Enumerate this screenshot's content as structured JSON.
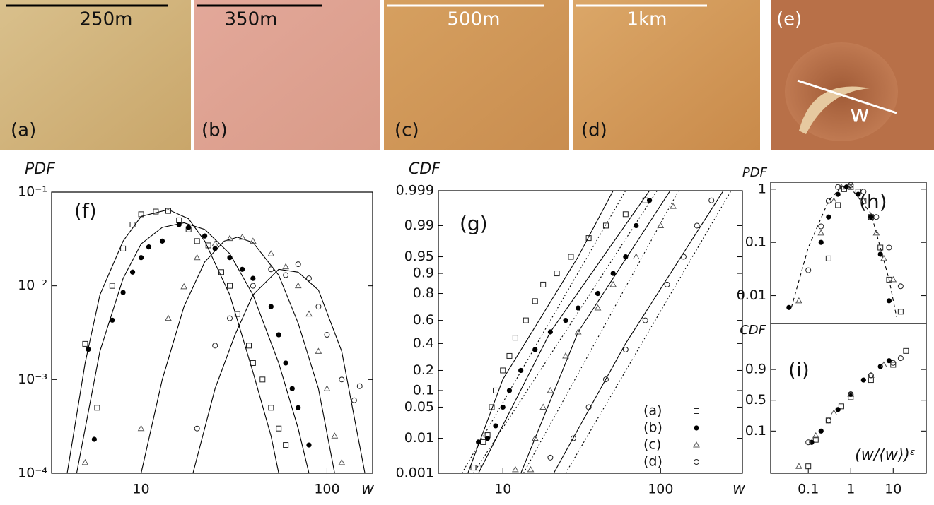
{
  "images": [
    {
      "label": "(a)",
      "scale": "250m"
    },
    {
      "label": "(b)",
      "scale": "350m"
    },
    {
      "label": "(c)",
      "scale": "500m"
    },
    {
      "label": "(d)",
      "scale": "1km"
    },
    {
      "label": "(e)",
      "annotation": "w"
    }
  ],
  "chart_data": [
    {
      "type": "scatter",
      "panel": "(f)",
      "y_label": "PDF",
      "x_label": "w",
      "x_scale": "log",
      "y_scale": "log",
      "xlim": [
        3.3,
        176
      ],
      "ylim": [
        0.0001,
        0.1
      ],
      "xticks": [
        10,
        100
      ],
      "yticks": [
        {
          "value": 0.0001,
          "label": "10⁻⁴"
        },
        {
          "value": 0.001,
          "label": "10⁻³"
        },
        {
          "value": 0.01,
          "label": "10⁻²"
        },
        {
          "value": 0.1,
          "label": "10⁻¹"
        }
      ],
      "series": [
        {
          "marker": "square",
          "color": "#222",
          "x": [
            5,
            5.8,
            7,
            8,
            9,
            10,
            12,
            14,
            16,
            18,
            20,
            23,
            27,
            30,
            33,
            38,
            40,
            45,
            50,
            55,
            60
          ],
          "values": [
            0.0024,
            0.0005,
            0.01,
            0.025,
            0.045,
            0.058,
            0.062,
            0.063,
            0.05,
            0.04,
            0.03,
            0.027,
            0.014,
            0.01,
            0.005,
            0.0023,
            0.0015,
            0.001,
            0.0005,
            0.0003,
            0.0002
          ]
        },
        {
          "marker": "dot",
          "color": "#000",
          "x": [
            5.2,
            5.6,
            7,
            8,
            9,
            10,
            11,
            13,
            16,
            18,
            22,
            25,
            30,
            35,
            40,
            50,
            55,
            60,
            65,
            70,
            80
          ],
          "values": [
            0.0021,
            0.00023,
            0.0043,
            0.0085,
            0.014,
            0.02,
            0.026,
            0.03,
            0.045,
            0.042,
            0.034,
            0.025,
            0.02,
            0.015,
            0.012,
            0.006,
            0.003,
            0.0015,
            0.0008,
            0.0005,
            0.0002
          ]
        },
        {
          "marker": "triangle",
          "color": "#555",
          "x": [
            5,
            10,
            14,
            17,
            20,
            25,
            30,
            35,
            40,
            50,
            60,
            70,
            80,
            90,
            100,
            110,
            120
          ],
          "values": [
            0.00013,
            0.0003,
            0.0045,
            0.0098,
            0.02,
            0.028,
            0.032,
            0.033,
            0.03,
            0.022,
            0.016,
            0.01,
            0.005,
            0.002,
            0.0008,
            0.00025,
            0.00013
          ]
        },
        {
          "marker": "circle",
          "color": "#222",
          "x": [
            20,
            25,
            30,
            40,
            50,
            60,
            70,
            80,
            90,
            100,
            120,
            140,
            150
          ],
          "values": [
            0.0003,
            0.0023,
            0.0045,
            0.01,
            0.015,
            0.013,
            0.017,
            0.012,
            0.006,
            0.003,
            0.001,
            0.0006,
            0.00085
          ]
        }
      ],
      "fits": [
        {
          "style": "solid",
          "x": [
            4,
            5,
            6,
            8,
            10,
            14,
            18,
            22,
            30,
            40,
            50,
            55
          ],
          "values": [
            0.0001,
            0.0015,
            0.008,
            0.03,
            0.055,
            0.065,
            0.052,
            0.03,
            0.008,
            0.0012,
            0.00025,
            0.0001
          ]
        },
        {
          "style": "solid",
          "x": [
            4.5,
            6,
            8,
            10,
            13,
            17,
            22,
            30,
            40,
            55,
            70,
            80
          ],
          "values": [
            0.0001,
            0.002,
            0.012,
            0.028,
            0.042,
            0.047,
            0.04,
            0.022,
            0.008,
            0.0015,
            0.0003,
            0.0001
          ]
        },
        {
          "style": "solid",
          "x": [
            10,
            13,
            17,
            22,
            28,
            33,
            40,
            55,
            70,
            90,
            110
          ],
          "values": [
            0.0001,
            0.001,
            0.006,
            0.018,
            0.03,
            0.033,
            0.029,
            0.013,
            0.004,
            0.0008,
            0.0001
          ]
        },
        {
          "style": "solid",
          "x": [
            19,
            25,
            32,
            40,
            55,
            70,
            90,
            120,
            160
          ],
          "values": [
            0.0001,
            0.0008,
            0.003,
            0.008,
            0.015,
            0.014,
            0.009,
            0.002,
            0.0001
          ]
        }
      ]
    },
    {
      "type": "scatter",
      "panel": "(g)",
      "y_label": "CDF",
      "x_label": "w",
      "x_scale": "log",
      "y_scale": "probit",
      "xlim": [
        3.9,
        330
      ],
      "ylim": [
        0.001,
        0.999
      ],
      "xticks": [
        10,
        100
      ],
      "yticks": [
        0.001,
        0.01,
        0.05,
        0.1,
        0.2,
        0.4,
        0.6,
        0.8,
        0.9,
        0.95,
        0.99,
        0.999
      ],
      "legend": "lower right",
      "series": [
        {
          "name": "(a)",
          "marker": "square",
          "color": "#222",
          "x": [
            6.5,
            7,
            7.5,
            8,
            8.5,
            9,
            10,
            11,
            12,
            14,
            16,
            18,
            22,
            27,
            35,
            45,
            60,
            80
          ],
          "values": [
            0.0015,
            0.0015,
            0.008,
            0.012,
            0.05,
            0.1,
            0.2,
            0.3,
            0.45,
            0.6,
            0.75,
            0.85,
            0.9,
            0.95,
            0.98,
            0.99,
            0.995,
            0.998
          ]
        },
        {
          "name": "(b)",
          "marker": "dot",
          "color": "#000",
          "x": [
            7,
            8,
            9,
            10,
            11,
            13,
            16,
            20,
            25,
            30,
            40,
            50,
            60,
            70,
            85
          ],
          "values": [
            0.008,
            0.01,
            0.02,
            0.05,
            0.1,
            0.2,
            0.35,
            0.5,
            0.6,
            0.7,
            0.8,
            0.9,
            0.95,
            0.99,
            0.998
          ]
        },
        {
          "name": "(c)",
          "marker": "triangle",
          "color": "#555",
          "x": [
            12,
            15,
            16,
            18,
            20,
            25,
            30,
            40,
            50,
            70,
            100,
            120
          ],
          "values": [
            0.0013,
            0.0013,
            0.01,
            0.05,
            0.1,
            0.3,
            0.5,
            0.7,
            0.85,
            0.95,
            0.99,
            0.997
          ]
        },
        {
          "name": "(d)",
          "marker": "circle",
          "color": "#222",
          "x": [
            20,
            28,
            35,
            45,
            60,
            80,
            110,
            140,
            170,
            210
          ],
          "values": [
            0.003,
            0.01,
            0.05,
            0.15,
            0.35,
            0.6,
            0.85,
            0.95,
            0.99,
            0.998
          ]
        }
      ],
      "fits": [
        {
          "style": "solid",
          "x": [
            6,
            10,
            30,
            50
          ],
          "values": [
            0.001,
            0.15,
            0.95,
            0.999
          ]
        },
        {
          "style": "dotted",
          "x": [
            5.5,
            60
          ],
          "values": [
            0.001,
            0.999
          ]
        },
        {
          "style": "solid",
          "x": [
            7,
            20,
            85
          ],
          "values": [
            0.001,
            0.5,
            0.999
          ]
        },
        {
          "style": "dotted",
          "x": [
            6.5,
            95
          ],
          "values": [
            0.001,
            0.999
          ]
        },
        {
          "style": "solid",
          "x": [
            13,
            30,
            115
          ],
          "values": [
            0.001,
            0.5,
            0.999
          ]
        },
        {
          "style": "dotted",
          "x": [
            13.5,
            130
          ],
          "values": [
            0.001,
            0.999
          ]
        },
        {
          "style": "solid",
          "x": [
            21,
            60,
            250
          ],
          "values": [
            0.001,
            0.4,
            0.999
          ]
        },
        {
          "style": "dotted",
          "x": [
            25,
            280
          ],
          "values": [
            0.001,
            0.999
          ]
        }
      ]
    },
    {
      "type": "scatter",
      "panel": "(h)",
      "y_label": "PDF",
      "x_scale": "log",
      "y_scale": "log",
      "xlim": [
        0.013,
        60
      ],
      "ylim": [
        0.003,
        1.35
      ],
      "yticks": [
        0.01,
        0.1,
        1
      ],
      "series": [
        {
          "marker": "square",
          "color": "#222",
          "x": [
            0.3,
            0.5,
            0.7,
            1,
            1.5,
            2,
            3,
            5,
            8,
            15
          ],
          "values": [
            0.05,
            0.5,
            1,
            1.1,
            0.9,
            0.6,
            0.3,
            0.08,
            0.02,
            0.005
          ]
        },
        {
          "marker": "dot",
          "color": "#000",
          "x": [
            0.035,
            0.2,
            0.3,
            0.5,
            0.8,
            1.5,
            3,
            5,
            8
          ],
          "values": [
            0.006,
            0.1,
            0.3,
            0.8,
            1.1,
            0.8,
            0.3,
            0.06,
            0.008
          ]
        },
        {
          "marker": "triangle",
          "color": "#555",
          "x": [
            0.06,
            0.2,
            0.4,
            0.6,
            1,
            2,
            4,
            6,
            10
          ],
          "values": [
            0.008,
            0.15,
            0.6,
            1.1,
            1.1,
            0.6,
            0.15,
            0.05,
            0.02
          ]
        },
        {
          "marker": "circle",
          "color": "#222",
          "x": [
            0.1,
            0.2,
            0.3,
            0.5,
            1,
            2,
            4,
            8,
            15
          ],
          "values": [
            0.03,
            0.2,
            0.6,
            1.1,
            1.2,
            0.9,
            0.3,
            0.08,
            0.015
          ]
        }
      ],
      "fits": [
        {
          "style": "dashed",
          "x": [
            0.04,
            0.1,
            0.3,
            0.6,
            1,
            3,
            8,
            12
          ],
          "values": [
            0.006,
            0.08,
            0.6,
            1.1,
            1.05,
            0.35,
            0.02,
            0.004
          ]
        }
      ]
    },
    {
      "type": "scatter",
      "panel": "(i)",
      "y_label": "CDF",
      "x_label": "(w/⟨w⟩)ᵋ",
      "x_scale": "log",
      "y_scale": "probit",
      "xlim": [
        0.013,
        60
      ],
      "ylim": [
        0.0012,
        0.9993
      ],
      "xticks": [
        0.1,
        1,
        10
      ],
      "yticks": [
        0.1,
        0.5,
        0.9
      ],
      "series": [
        {
          "marker": "square",
          "color": "#222",
          "x": [
            0.1,
            0.15,
            0.3,
            0.6,
            1,
            3,
            10,
            20
          ],
          "values": [
            0.003,
            0.05,
            0.2,
            0.4,
            0.55,
            0.8,
            0.93,
            0.98
          ]
        },
        {
          "marker": "dot",
          "color": "#000",
          "x": [
            0.12,
            0.2,
            0.5,
            1,
            2,
            5,
            8
          ],
          "values": [
            0.04,
            0.1,
            0.35,
            0.6,
            0.8,
            0.92,
            0.95
          ]
        },
        {
          "marker": "triangle",
          "color": "#555",
          "x": [
            0.06,
            0.15,
            0.4,
            1,
            3,
            6
          ],
          "values": [
            0.003,
            0.07,
            0.3,
            0.6,
            0.85,
            0.93
          ]
        },
        {
          "marker": "circle",
          "color": "#222",
          "x": [
            0.1,
            0.3,
            1,
            3,
            10,
            15
          ],
          "values": [
            0.04,
            0.2,
            0.6,
            0.85,
            0.94,
            0.96
          ]
        }
      ],
      "fits": []
    }
  ]
}
